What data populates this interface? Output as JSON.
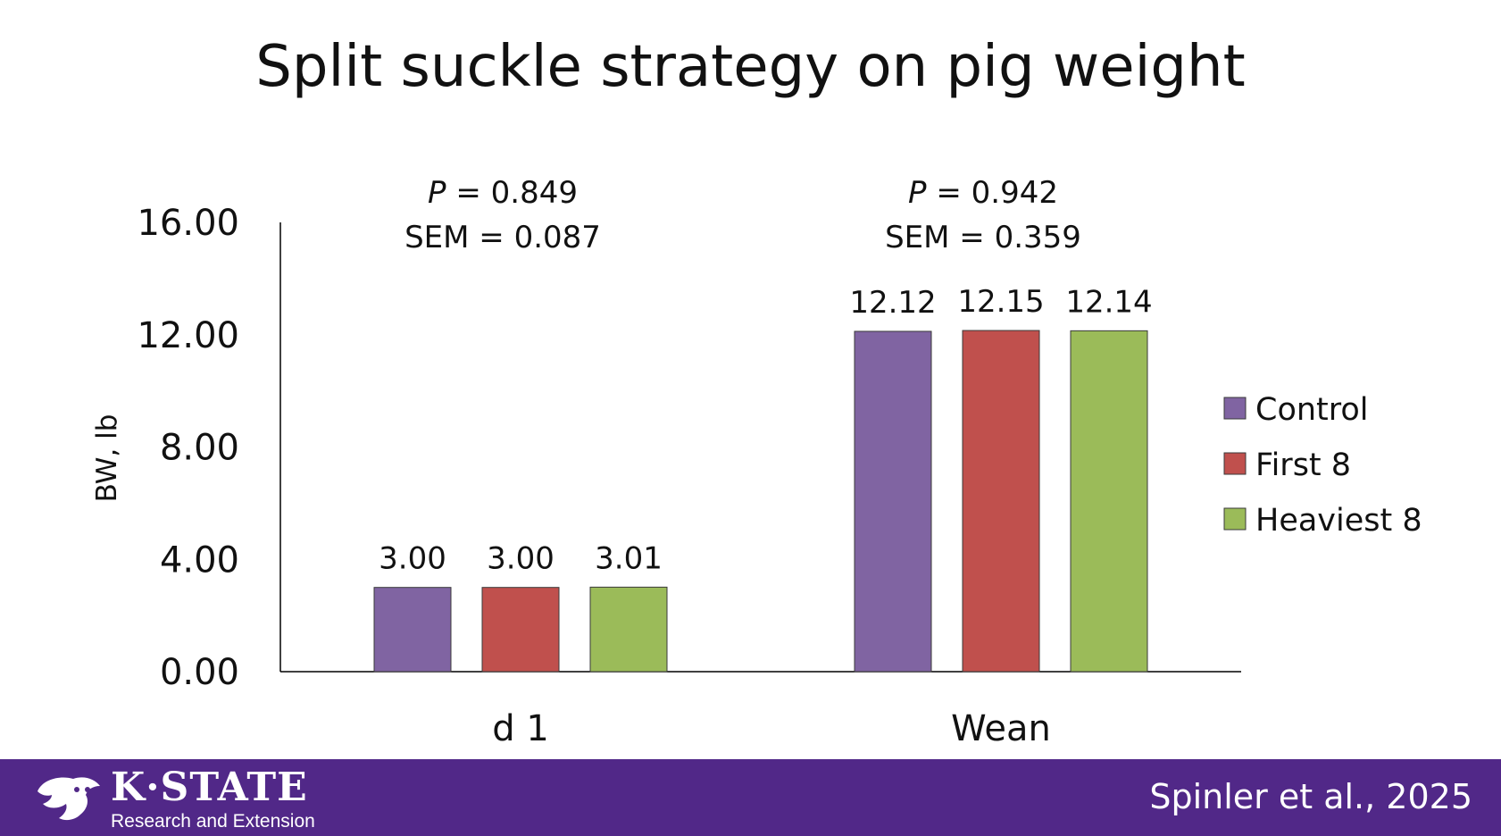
{
  "slide": {
    "title": "Split suckle strategy on pig weight"
  },
  "chart_data": {
    "type": "bar",
    "categories": [
      "d 1",
      "Wean"
    ],
    "series": [
      {
        "name": "Control",
        "values": [
          3.0,
          12.12
        ],
        "labels": [
          "3.00",
          "12.12"
        ],
        "color": "#8064a2"
      },
      {
        "name": "First 8",
        "values": [
          3.0,
          12.15
        ],
        "labels": [
          "3.00",
          "12.15"
        ],
        "color": "#c0504d"
      },
      {
        "name": "Heaviest 8",
        "values": [
          3.01,
          12.14
        ],
        "labels": [
          "3.01",
          "12.14"
        ],
        "color": "#9bbb59"
      }
    ],
    "ylabel": "BW, lb",
    "xlabel": "",
    "ylim": [
      0,
      16
    ],
    "yticks": [
      "0.00",
      "4.00",
      "8.00",
      "12.00",
      "16.00"
    ],
    "grid": false,
    "legend_position": "right",
    "annotations": [
      {
        "category": "d 1",
        "p_label": "P",
        "p_value": " = 0.849",
        "sem": "SEM = 0.087"
      },
      {
        "category": "Wean",
        "p_label": "P",
        "p_value": " = 0.942",
        "sem": "SEM = 0.359"
      }
    ]
  },
  "footer": {
    "logo_name": "K·STATE",
    "logo_sub": "Research and Extension",
    "citation": "Spinler et al., 2025",
    "background_color": "#512888"
  }
}
